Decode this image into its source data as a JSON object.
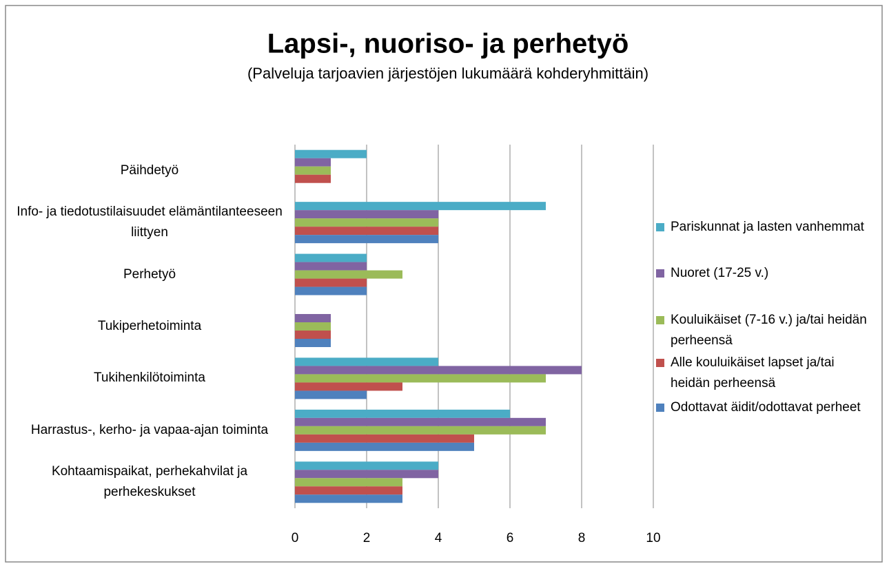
{
  "chart_data": {
    "type": "bar",
    "orientation": "horizontal",
    "title": "Lapsi-, nuoriso- ja perhetyö",
    "subtitle": "(Palveluja tarjoavien järjestöjen lukumäärä kohderyhmittäin)",
    "categories": [
      "Päihdetyö",
      "Info- ja tiedotustilaisuudet elämäntilanteeseen liittyen",
      "Perhetyö",
      "Tukiperhetoiminta",
      "Tukihenkilötoiminta",
      "Harrastus-, kerho- ja vapaa-ajan toiminta",
      "Kohtaamispaikat, perhekahvilat ja perhekeskukset"
    ],
    "series": [
      {
        "name": "Pariskunnat ja lasten vanhemmat",
        "color": "#4bacc6",
        "values": [
          2,
          7,
          2,
          null,
          4,
          6,
          4
        ]
      },
      {
        "name": "Nuoret (17-25 v.)",
        "color": "#8064a2",
        "values": [
          1,
          4,
          2,
          1,
          8,
          7,
          4
        ]
      },
      {
        "name": "Kouluikäiset (7-16 v.) ja/tai heidän perheensä",
        "color": "#9bbb59",
        "values": [
          1,
          4,
          3,
          1,
          7,
          7,
          3
        ]
      },
      {
        "name": "Alle kouluikäiset lapset ja/tai heidän perheensä",
        "color": "#c0504d",
        "values": [
          1,
          4,
          2,
          1,
          3,
          5,
          3
        ]
      },
      {
        "name": "Odottavat äidit/odottavat perheet",
        "color": "#4f81bd",
        "values": [
          null,
          4,
          2,
          1,
          2,
          5,
          3
        ]
      }
    ],
    "xlim": [
      0,
      10
    ],
    "xticks": [
      0,
      2,
      4,
      6,
      8,
      10
    ],
    "grid": true,
    "legend": "right"
  }
}
